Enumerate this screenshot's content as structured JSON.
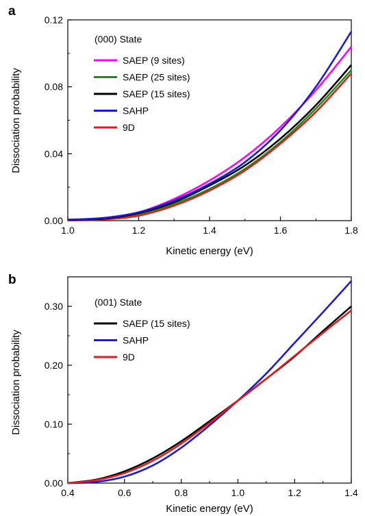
{
  "chart_data": [
    {
      "panel": "a",
      "type": "line",
      "legend_title": "(000) State",
      "xlabel": "Kinetic energy (eV)",
      "ylabel": "Dissociation probability",
      "xlim": [
        1.0,
        1.8
      ],
      "ylim": [
        0.0,
        0.12
      ],
      "xticks": [
        1.0,
        1.2,
        1.4,
        1.6,
        1.8
      ],
      "xtick_labels": [
        "1.0",
        "1.2",
        "1.4",
        "1.6",
        "1.8"
      ],
      "yticks": [
        0.0,
        0.04,
        0.08,
        0.12
      ],
      "ytick_labels": [
        "0.00",
        "0.04",
        "0.08",
        "0.12"
      ],
      "legend_position": "top-left",
      "grid": false,
      "series": [
        {
          "name": "SAEP (9 sites)",
          "color": "#ff00ff",
          "x": [
            1.0,
            1.1,
            1.2,
            1.3,
            1.4,
            1.5,
            1.6,
            1.7,
            1.8
          ],
          "y": [
            0.0005,
            0.0015,
            0.005,
            0.013,
            0.024,
            0.038,
            0.056,
            0.078,
            0.104
          ]
        },
        {
          "name": "SAEP (25 sites)",
          "color": "#1a8c1a",
          "x": [
            1.0,
            1.1,
            1.2,
            1.3,
            1.4,
            1.5,
            1.6,
            1.7,
            1.8
          ],
          "y": [
            0.0003,
            0.001,
            0.004,
            0.01,
            0.019,
            0.031,
            0.047,
            0.067,
            0.09
          ]
        },
        {
          "name": "SAEP (15 sites)",
          "color": "#000000",
          "x": [
            1.0,
            1.1,
            1.2,
            1.3,
            1.4,
            1.5,
            1.6,
            1.7,
            1.8
          ],
          "y": [
            0.0004,
            0.0012,
            0.0045,
            0.011,
            0.021,
            0.033,
            0.049,
            0.069,
            0.093
          ]
        },
        {
          "name": "SAHP",
          "color": "#1a1adb",
          "x": [
            1.0,
            1.1,
            1.2,
            1.3,
            1.4,
            1.5,
            1.6,
            1.7,
            1.8
          ],
          "y": [
            0.0006,
            0.0016,
            0.005,
            0.012,
            0.022,
            0.035,
            0.054,
            0.08,
            0.113
          ]
        },
        {
          "name": "9D",
          "color": "#e61a1a",
          "x": [
            1.0,
            1.1,
            1.2,
            1.3,
            1.4,
            1.5,
            1.6,
            1.7,
            1.8
          ],
          "y": [
            0.0002,
            0.0007,
            0.003,
            0.009,
            0.018,
            0.03,
            0.046,
            0.065,
            0.088
          ]
        }
      ]
    },
    {
      "panel": "b",
      "type": "line",
      "legend_title": "(001) State",
      "xlabel": "Kinetic energy (eV)",
      "ylabel": "Dissociation probability",
      "xlim": [
        0.4,
        1.4
      ],
      "ylim": [
        0.0,
        0.35
      ],
      "xticks": [
        0.4,
        0.6,
        0.8,
        1.0,
        1.2,
        1.4
      ],
      "xtick_labels": [
        "0.4",
        "0.6",
        "0.8",
        "1.0",
        "1.2",
        "1.4"
      ],
      "yticks": [
        0.0,
        0.1,
        0.2,
        0.3
      ],
      "ytick_labels": [
        "0.00",
        "0.10",
        "0.20",
        "0.30"
      ],
      "legend_position": "top-left",
      "grid": false,
      "series": [
        {
          "name": "SAEP (15 sites)",
          "color": "#000000",
          "x": [
            0.4,
            0.5,
            0.6,
            0.7,
            0.8,
            0.9,
            1.0,
            1.1,
            1.2,
            1.3,
            1.4
          ],
          "y": [
            0.0,
            0.006,
            0.02,
            0.042,
            0.071,
            0.105,
            0.14,
            0.177,
            0.215,
            0.258,
            0.3
          ]
        },
        {
          "name": "SAHP",
          "color": "#1a1adb",
          "x": [
            0.4,
            0.5,
            0.6,
            0.7,
            0.8,
            0.9,
            1.0,
            1.1,
            1.2,
            1.3,
            1.4
          ],
          "y": [
            0.0,
            0.002,
            0.011,
            0.03,
            0.06,
            0.098,
            0.14,
            0.186,
            0.238,
            0.29,
            0.343
          ]
        },
        {
          "name": "9D",
          "color": "#e61a1a",
          "x": [
            0.4,
            0.5,
            0.6,
            0.7,
            0.8,
            0.9,
            1.0,
            1.1,
            1.2,
            1.3,
            1.4
          ],
          "y": [
            0.0,
            0.005,
            0.017,
            0.038,
            0.067,
            0.102,
            0.14,
            0.177,
            0.216,
            0.255,
            0.293
          ]
        }
      ]
    }
  ]
}
